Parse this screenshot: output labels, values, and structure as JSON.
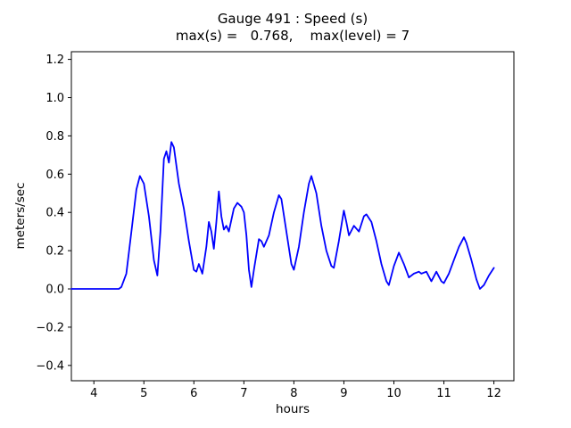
{
  "chart_data": {
    "type": "line",
    "title": "Gauge 491 : Speed (s)",
    "subtitle": "max(s) =   0.768,    max(level) = 7",
    "xlabel": "hours",
    "ylabel": "meters/sec",
    "xlim": [
      3.55,
      12.4
    ],
    "ylim": [
      -0.48,
      1.24
    ],
    "xticks": [
      4,
      5,
      6,
      7,
      8,
      9,
      10,
      11,
      12
    ],
    "yticks": [
      -0.4,
      -0.2,
      0.0,
      0.2,
      0.4,
      0.6,
      0.8,
      1.0,
      1.2
    ],
    "grid": false,
    "legend_position": "none",
    "max_s": 0.768,
    "max_level": 7,
    "line_color": "#0000ff",
    "series": [
      {
        "name": "speed",
        "color": "#0000ff",
        "points": [
          [
            3.55,
            0.0
          ],
          [
            3.8,
            0.0
          ],
          [
            4.0,
            0.0
          ],
          [
            4.2,
            0.0
          ],
          [
            4.4,
            0.0
          ],
          [
            4.5,
            0.0
          ],
          [
            4.55,
            0.01
          ],
          [
            4.65,
            0.08
          ],
          [
            4.75,
            0.3
          ],
          [
            4.85,
            0.52
          ],
          [
            4.92,
            0.59
          ],
          [
            5.0,
            0.55
          ],
          [
            5.1,
            0.38
          ],
          [
            5.2,
            0.15
          ],
          [
            5.27,
            0.07
          ],
          [
            5.33,
            0.3
          ],
          [
            5.4,
            0.68
          ],
          [
            5.45,
            0.72
          ],
          [
            5.5,
            0.66
          ],
          [
            5.55,
            0.768
          ],
          [
            5.6,
            0.74
          ],
          [
            5.7,
            0.55
          ],
          [
            5.8,
            0.42
          ],
          [
            5.9,
            0.25
          ],
          [
            6.0,
            0.1
          ],
          [
            6.05,
            0.09
          ],
          [
            6.1,
            0.13
          ],
          [
            6.17,
            0.08
          ],
          [
            6.25,
            0.22
          ],
          [
            6.3,
            0.35
          ],
          [
            6.35,
            0.3
          ],
          [
            6.4,
            0.21
          ],
          [
            6.45,
            0.35
          ],
          [
            6.5,
            0.51
          ],
          [
            6.55,
            0.38
          ],
          [
            6.6,
            0.31
          ],
          [
            6.65,
            0.33
          ],
          [
            6.7,
            0.3
          ],
          [
            6.8,
            0.42
          ],
          [
            6.87,
            0.45
          ],
          [
            6.95,
            0.43
          ],
          [
            7.0,
            0.4
          ],
          [
            7.05,
            0.28
          ],
          [
            7.1,
            0.1
          ],
          [
            7.15,
            0.01
          ],
          [
            7.2,
            0.1
          ],
          [
            7.3,
            0.26
          ],
          [
            7.35,
            0.25
          ],
          [
            7.4,
            0.22
          ],
          [
            7.5,
            0.28
          ],
          [
            7.6,
            0.4
          ],
          [
            7.7,
            0.49
          ],
          [
            7.75,
            0.47
          ],
          [
            7.85,
            0.3
          ],
          [
            7.95,
            0.13
          ],
          [
            8.0,
            0.1
          ],
          [
            8.1,
            0.22
          ],
          [
            8.2,
            0.4
          ],
          [
            8.3,
            0.55
          ],
          [
            8.35,
            0.59
          ],
          [
            8.45,
            0.5
          ],
          [
            8.55,
            0.33
          ],
          [
            8.65,
            0.2
          ],
          [
            8.75,
            0.12
          ],
          [
            8.8,
            0.11
          ],
          [
            8.9,
            0.25
          ],
          [
            9.0,
            0.41
          ],
          [
            9.05,
            0.35
          ],
          [
            9.1,
            0.28
          ],
          [
            9.2,
            0.33
          ],
          [
            9.3,
            0.3
          ],
          [
            9.4,
            0.38
          ],
          [
            9.45,
            0.39
          ],
          [
            9.55,
            0.35
          ],
          [
            9.65,
            0.25
          ],
          [
            9.75,
            0.13
          ],
          [
            9.85,
            0.04
          ],
          [
            9.9,
            0.02
          ],
          [
            10.0,
            0.12
          ],
          [
            10.1,
            0.19
          ],
          [
            10.2,
            0.13
          ],
          [
            10.3,
            0.06
          ],
          [
            10.4,
            0.08
          ],
          [
            10.5,
            0.09
          ],
          [
            10.55,
            0.08
          ],
          [
            10.65,
            0.09
          ],
          [
            10.75,
            0.04
          ],
          [
            10.85,
            0.09
          ],
          [
            10.95,
            0.04
          ],
          [
            11.0,
            0.03
          ],
          [
            11.1,
            0.08
          ],
          [
            11.2,
            0.15
          ],
          [
            11.3,
            0.22
          ],
          [
            11.4,
            0.27
          ],
          [
            11.45,
            0.24
          ],
          [
            11.55,
            0.15
          ],
          [
            11.65,
            0.05
          ],
          [
            11.72,
            0.0
          ],
          [
            11.8,
            0.02
          ],
          [
            11.9,
            0.07
          ],
          [
            12.0,
            0.11
          ]
        ]
      }
    ]
  }
}
